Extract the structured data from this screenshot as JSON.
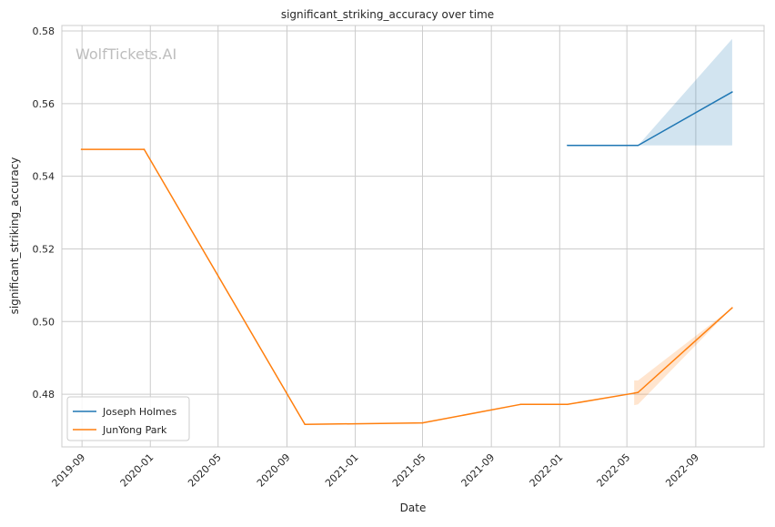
{
  "watermark": "WolfTickets.AI",
  "chart_data": {
    "type": "line",
    "title": "significant_striking_accuracy over time",
    "xlabel": "Date",
    "ylabel": "significant_striking_accuracy",
    "xlim": [
      "2019-07-27",
      "2023-01-01"
    ],
    "ylim": [
      0.4655,
      0.5815
    ],
    "x_ticks": [
      "2019-09",
      "2020-01",
      "2020-05",
      "2020-09",
      "2021-01",
      "2021-05",
      "2021-09",
      "2022-01",
      "2022-05",
      "2022-09"
    ],
    "y_ticks": [
      "0.48",
      "0.50",
      "0.52",
      "0.54",
      "0.56",
      "0.58"
    ],
    "grid": true,
    "legend_position": "lower-left",
    "series": [
      {
        "name": "Joseph Holmes",
        "color": "#1f77b4",
        "points": [
          {
            "date": "2022-01-15",
            "value": 0.5485
          },
          {
            "date": "2022-05-21",
            "value": 0.5485
          },
          {
            "date": "2022-11-05",
            "value": 0.5632
          }
        ],
        "band": [
          {
            "date": "2022-05-21",
            "low": 0.5485,
            "high": 0.5485
          },
          {
            "date": "2022-11-05",
            "low": 0.5485,
            "high": 0.5778
          }
        ]
      },
      {
        "name": "JunYong Park",
        "color": "#ff7f0e",
        "points": [
          {
            "date": "2019-08-31",
            "value": 0.5474
          },
          {
            "date": "2019-12-21",
            "value": 0.5474
          },
          {
            "date": "2020-10-03",
            "value": 0.4717
          },
          {
            "date": "2021-05-01",
            "value": 0.4721
          },
          {
            "date": "2021-10-23",
            "value": 0.4772
          },
          {
            "date": "2022-01-15",
            "value": 0.4772
          },
          {
            "date": "2022-05-14",
            "value": 0.4803
          },
          {
            "date": "2022-05-21",
            "value": 0.4805
          },
          {
            "date": "2022-11-05",
            "value": 0.5038
          }
        ],
        "band": [
          {
            "date": "2022-05-14",
            "low": 0.477,
            "high": 0.4838
          },
          {
            "date": "2022-05-21",
            "low": 0.4772,
            "high": 0.4838
          },
          {
            "date": "2022-11-05",
            "low": 0.5038,
            "high": 0.5038
          }
        ]
      }
    ]
  }
}
